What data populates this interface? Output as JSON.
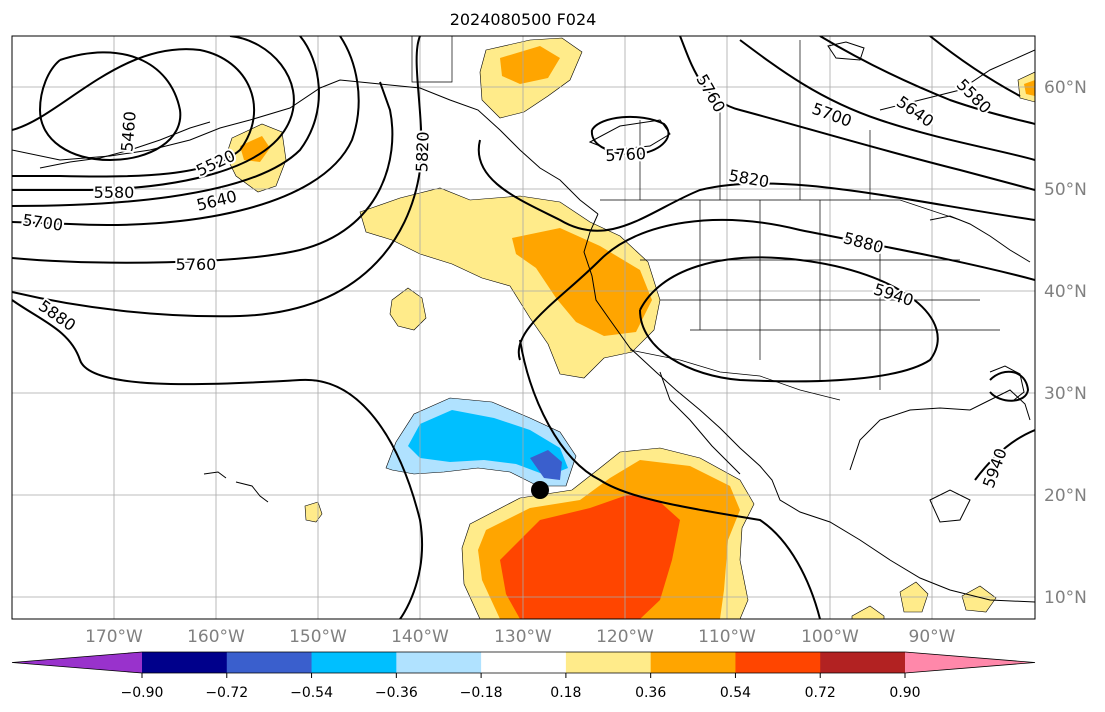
{
  "title": "2024080500 F024",
  "longitude_labels": [
    "170°W",
    "160°W",
    "150°W",
    "140°W",
    "130°W",
    "120°W",
    "110°W",
    "100°W",
    "90°W"
  ],
  "latitude_labels": [
    "60°N",
    "50°N",
    "40°N",
    "30°N",
    "20°N",
    "10°N"
  ],
  "colorbar": {
    "tick_labels": [
      "−0.90",
      "−0.72",
      "−0.54",
      "−0.36",
      "−0.18",
      "0.18",
      "0.36",
      "0.54",
      "0.72",
      "0.90"
    ],
    "colors": [
      "#9932cc",
      "#00008b",
      "#3a5fcd",
      "#00bfff",
      "#b0e2ff",
      "#ffffff",
      "#ffeb8a",
      "#ffa500",
      "#ff4500",
      "#b22222",
      "#ff88aa"
    ]
  },
  "contour_labels": [
    "5460",
    "5520",
    "5580",
    "5640",
    "5700",
    "5760",
    "5820",
    "5880",
    "5760",
    "5760",
    "5820",
    "5880",
    "5940",
    "5700",
    "5640",
    "5580",
    "5940"
  ],
  "colors": {
    "contour": "#000000",
    "coast": "#000000",
    "grid": "#a9a9a9",
    "marker": "#000000"
  }
}
